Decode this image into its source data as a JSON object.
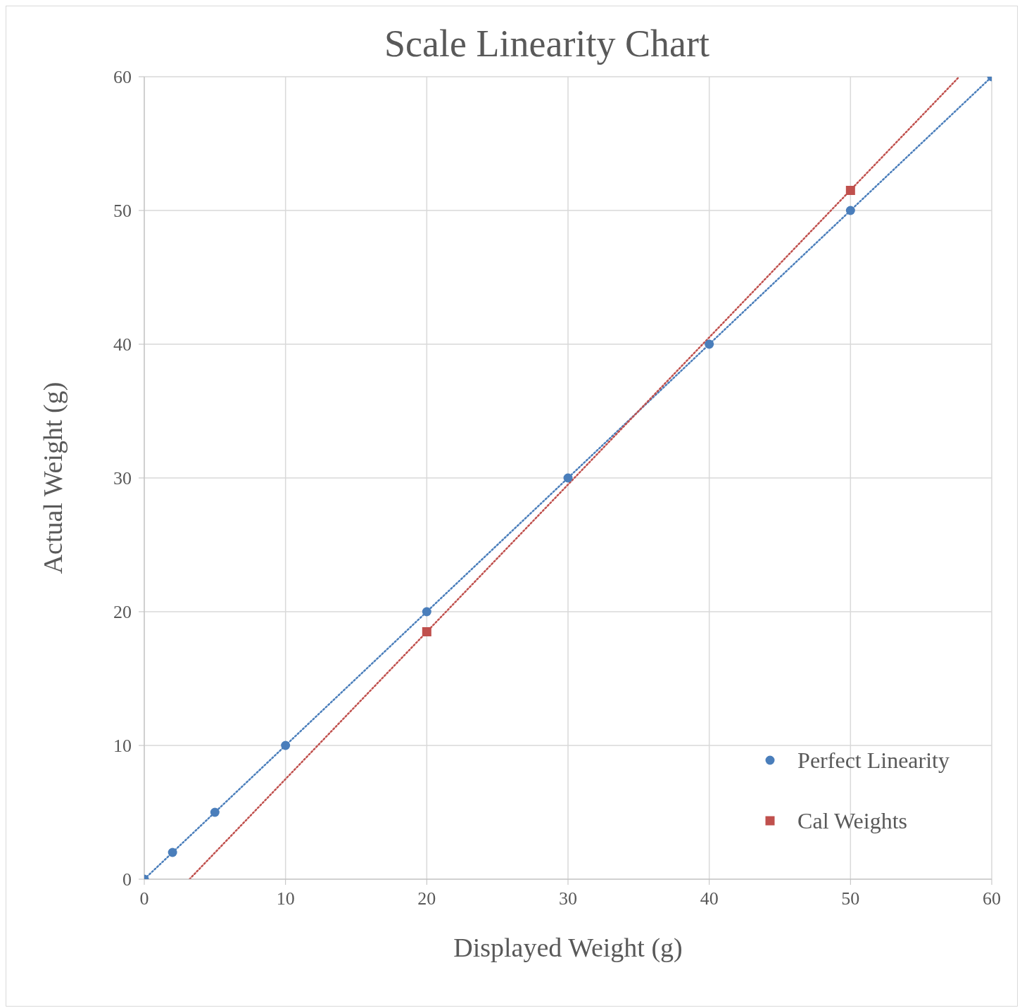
{
  "chart_data": {
    "type": "scatter",
    "title": "Scale Linearity Chart",
    "xlabel": "Displayed Weight (g)",
    "ylabel": "Actual Weight (g)",
    "xlim": [
      0,
      60
    ],
    "xticks": [
      0,
      10,
      20,
      30,
      40,
      50,
      60
    ],
    "ylim": [
      0,
      60
    ],
    "yticks": [
      0,
      10,
      20,
      30,
      40,
      50,
      60
    ],
    "grid": true,
    "legend": "bottom right",
    "series": [
      {
        "name": "Perfect Linearity",
        "color": "#4a7ebb",
        "marker": "circle",
        "x": [
          0,
          2,
          5,
          10,
          20,
          30,
          40,
          50,
          60
        ],
        "values": [
          0,
          2,
          5,
          10,
          20,
          30,
          40,
          50,
          60
        ]
      },
      {
        "name": "Cal Weights",
        "color": "#c0504d",
        "marker": "square",
        "x": [
          20,
          50
        ],
        "values": [
          18.5,
          51.5
        ]
      },
      {
        "type": "line",
        "color": "#4a7ebb",
        "marker": "none",
        "line_style": "dotted",
        "x": [
          0,
          60
        ],
        "values": [
          0,
          60
        ]
      },
      {
        "type": "line",
        "color": "#c0504d",
        "marker": "none",
        "line_style": "dotted",
        "x": [
          3.2,
          57.7
        ],
        "values": [
          0,
          60
        ]
      }
    ]
  }
}
